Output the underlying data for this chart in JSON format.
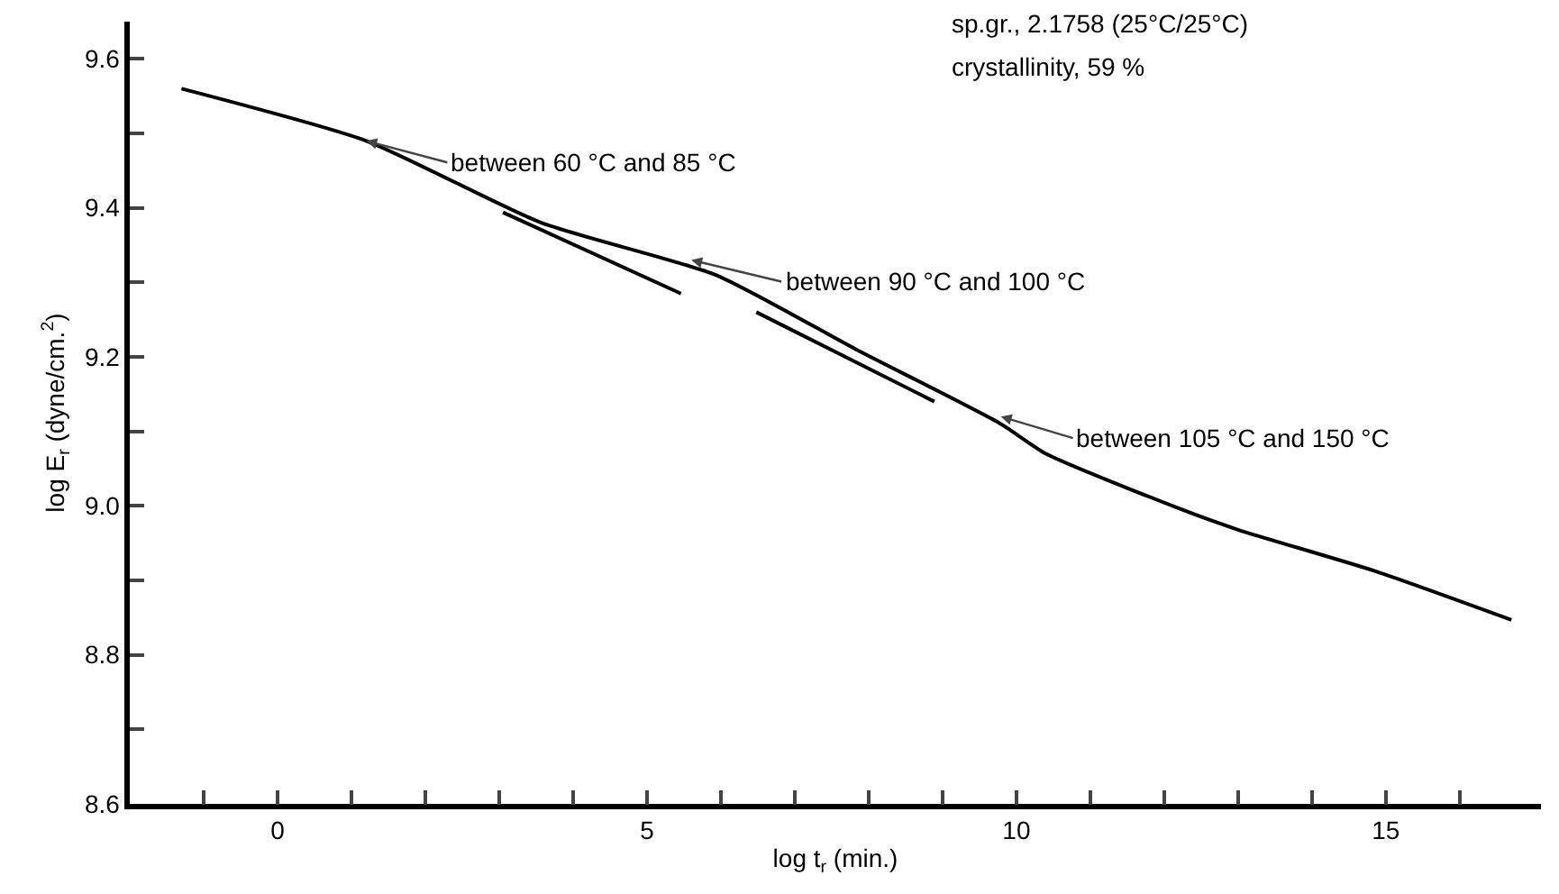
{
  "chart_data": {
    "type": "line",
    "xlabel": "log t$_{r}$ (min.)",
    "ylabel": "log E$_{r}$ (dyne/cm.$^{2}$)",
    "series": [
      {
        "color": "#000000",
        "x": [
          -1.3,
          1.2,
          3.57,
          5.93,
          7.83,
          9.79,
          10.4,
          12.24,
          13.0,
          14.87,
          16.7
        ],
        "values": [
          9.56,
          9.49,
          9.38,
          9.31,
          9.21,
          9.11,
          9.07,
          8.995,
          8.968,
          8.912,
          8.847
        ]
      },
      {
        "color": "#000000",
        "x": [
          3.05,
          5.46
        ],
        "values": [
          9.394,
          9.285
        ]
      },
      {
        "color": "#000000",
        "x": [
          6.48,
          8.89
        ],
        "values": [
          9.26,
          9.14
        ]
      }
    ],
    "xlim": [
      -2,
      17.1
    ],
    "xticks": [
      {
        "value": -1,
        "label": null
      },
      0,
      {
        "value": 1,
        "label": null
      },
      {
        "value": 2,
        "label": null
      },
      {
        "value": 3,
        "label": null
      },
      {
        "value": 4,
        "label": null
      },
      5,
      {
        "value": 6,
        "label": null
      },
      {
        "value": 7,
        "label": null
      },
      {
        "value": 8,
        "label": null
      },
      {
        "value": 9,
        "label": null
      },
      10,
      {
        "value": 11,
        "label": null
      },
      {
        "value": 12,
        "label": null
      },
      {
        "value": 13,
        "label": null
      },
      {
        "value": 14,
        "label": null
      },
      15,
      {
        "value": 16,
        "label": null
      }
    ],
    "ylim": [
      8.6,
      9.65
    ],
    "yticks": [
      {
        "value": 8.6,
        "label": "8.6"
      },
      {
        "value": 8.7,
        "label": null
      },
      {
        "value": 8.8,
        "label": "8.8"
      },
      {
        "value": 8.9,
        "label": null
      },
      {
        "value": 9,
        "label": "9.0"
      },
      {
        "value": 9.1,
        "label": null
      },
      {
        "value": 9.2,
        "label": "9.2"
      },
      {
        "value": 9.3,
        "label": null
      },
      {
        "value": 9.4,
        "label": "9.4"
      },
      {
        "value": 9.5,
        "label": null
      },
      {
        "value": 9.6,
        "label": "9.6"
      }
    ],
    "grid": false,
    "marker": "none",
    "line_style": "solid",
    "annotations": [
      {
        "text": "between 60 °C and 85 °C",
        "x": 1.2,
        "y": 9.49
      },
      {
        "text": "between 90 °C and 100 °C",
        "x": 5.6,
        "y": 9.33
      },
      {
        "text": "between 105 °C and 150 °C",
        "x": 9.79,
        "y": 9.12
      },
      "sp.gr., 2.1758 (25°C/25°C)",
      "crystallinity, 59 %"
    ]
  }
}
